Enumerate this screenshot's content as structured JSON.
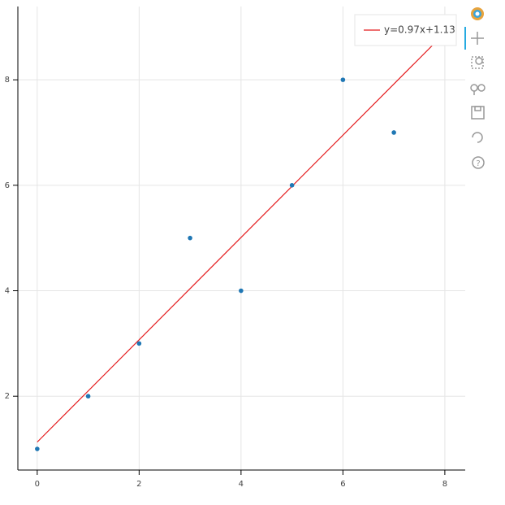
{
  "chart_data": {
    "type": "scatter",
    "points": {
      "x": [
        0,
        1,
        2,
        3,
        4,
        5,
        6,
        7
      ],
      "y": [
        1,
        2,
        3,
        5,
        4,
        6,
        8,
        7
      ],
      "color": "#1f77b4"
    },
    "fit_line": {
      "name": "y=0.97x+1.13",
      "x": [
        0,
        8
      ],
      "y": [
        1.13,
        8.89
      ],
      "color": "#e41a1c"
    },
    "xlim": [
      -0.38,
      8.4
    ],
    "ylim": [
      0.6,
      9.39
    ],
    "xticks": [
      0,
      2,
      4,
      6,
      8
    ],
    "yticks": [
      2,
      4,
      6,
      8
    ],
    "grid": true
  }
}
